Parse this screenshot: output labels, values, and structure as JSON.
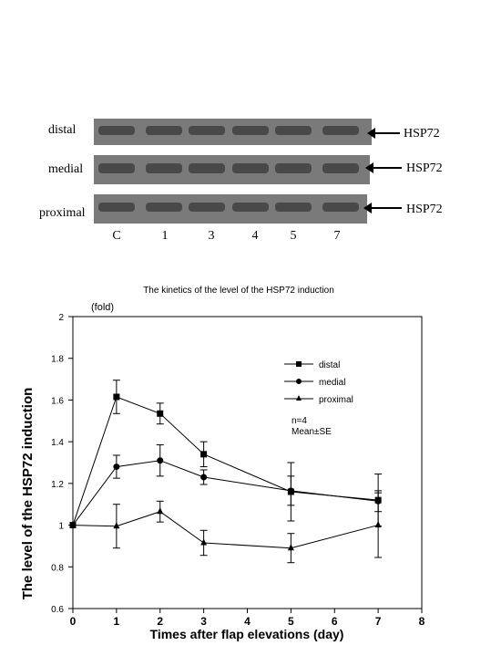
{
  "blot": {
    "rows": [
      {
        "label": "distal",
        "marker": "HSP72"
      },
      {
        "label": "medial",
        "marker": "HSP72"
      },
      {
        "label": "proximal",
        "marker": "HSP72"
      }
    ],
    "lanes": [
      "C",
      "1",
      "3",
      "4",
      "5",
      "7"
    ]
  },
  "chart_data": {
    "type": "line",
    "title": "The kinetics of the level of the HSP72 induction",
    "xlabel": "Times  after flap elevations (day)",
    "ylabel": "The level of the HSP72 induction",
    "yunit": "(fold)",
    "xlim": [
      0,
      8
    ],
    "ylim": [
      0.6,
      2
    ],
    "xticks": [
      0,
      1,
      2,
      3,
      4,
      5,
      6,
      7,
      8
    ],
    "yticks": [
      "0.6",
      "0.8",
      "1",
      "1.2",
      "1.4",
      "1.6",
      "1.8",
      "2"
    ],
    "grid": false,
    "legend": "upper-right",
    "annotations": [
      "n=4",
      "Mean±SE"
    ],
    "series": [
      {
        "name": "distal",
        "marker": "square",
        "x": [
          0,
          1,
          2,
          3,
          5,
          7
        ],
        "y": [
          1.0,
          1.615,
          1.535,
          1.34,
          1.16,
          1.12
        ],
        "err": [
          0,
          0.08,
          0.05,
          0.06,
          0.14,
          0.125
        ]
      },
      {
        "name": "medial",
        "marker": "circle",
        "x": [
          0,
          1,
          2,
          3,
          5,
          7
        ],
        "y": [
          1.0,
          1.28,
          1.31,
          1.23,
          1.165,
          1.115
        ],
        "err": [
          0,
          0.055,
          0.075,
          0.035,
          0.07,
          0.05
        ]
      },
      {
        "name": "proximal",
        "marker": "triangle",
        "x": [
          0,
          1,
          2,
          3,
          5,
          7
        ],
        "y": [
          1.0,
          0.995,
          1.065,
          0.915,
          0.89,
          1.0
        ],
        "err": [
          0,
          0.105,
          0.05,
          0.06,
          0.07,
          0.155
        ]
      }
    ]
  }
}
